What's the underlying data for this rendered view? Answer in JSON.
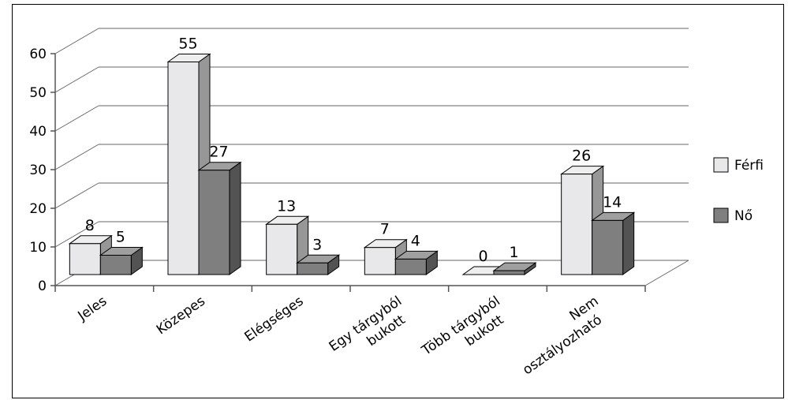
{
  "chart_data": {
    "type": "bar",
    "categories": [
      "Jeles",
      "Közepes",
      "Elégséges",
      "Egy tárgyból bukott",
      "Több tárgyból bukott",
      "Nem osztályozható"
    ],
    "category_lines": [
      [
        "Jeles"
      ],
      [
        "Közepes"
      ],
      [
        "Elégséges"
      ],
      [
        "Egy tárgyból",
        "bukott"
      ],
      [
        "Több tárgyból",
        "bukott"
      ],
      [
        "Nem",
        "osztályozható"
      ]
    ],
    "series": [
      {
        "name": "Férfi",
        "values": [
          8,
          55,
          13,
          7,
          0,
          26
        ],
        "color": "#e8e8ea"
      },
      {
        "name": "Nő",
        "values": [
          5,
          27,
          3,
          4,
          1,
          14
        ],
        "color": "#7f7f7f"
      }
    ],
    "y_ticks": [
      "0",
      "10",
      "20",
      "30",
      "40",
      "50",
      "60"
    ],
    "ylim": [
      0,
      60
    ],
    "bar_style": "3d",
    "grid": true,
    "legend": "right"
  }
}
